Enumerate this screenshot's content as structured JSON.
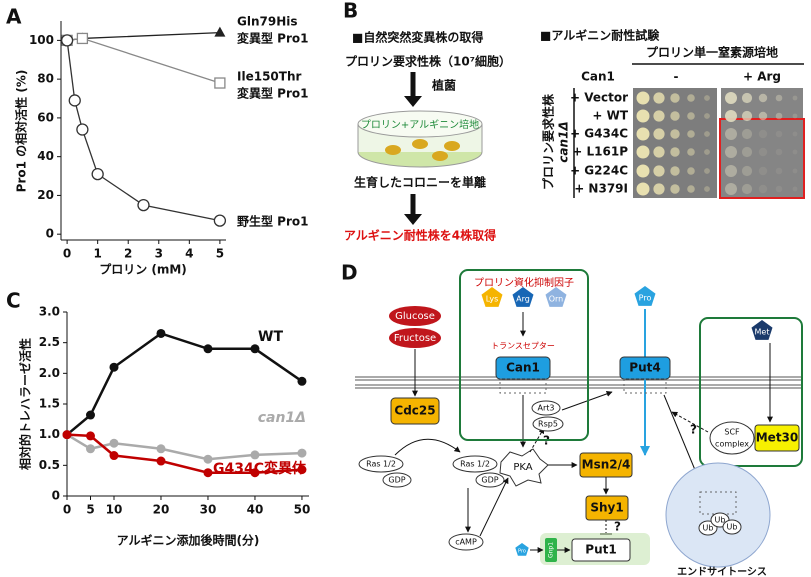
{
  "panel_labels": [
    "A",
    "B",
    "C",
    "D"
  ],
  "chart_data": [
    {
      "type": "line",
      "xlabel": "プロリン (mM)",
      "ylabel": "Pro1 の相対活性 (%)",
      "xlim": [
        -0.2,
        5.2
      ],
      "ylim": [
        -3,
        110
      ],
      "xticks": [
        0,
        1,
        2,
        3,
        4,
        5
      ],
      "yticks": [
        0,
        20,
        40,
        60,
        80,
        100
      ],
      "series": [
        {
          "name": [
            "Gln79His",
            "変異型 Pro1"
          ],
          "color": "#222222",
          "marker": "triangle",
          "x": [
            0,
            0.5,
            5
          ],
          "values": [
            100,
            101,
            104
          ]
        },
        {
          "name": [
            "Ile150Thr",
            "変異型 Pro1"
          ],
          "color": "#888888",
          "marker": "square",
          "x": [
            0,
            0.5,
            5
          ],
          "values": [
            100,
            101,
            78
          ]
        },
        {
          "name": [
            "野生型 Pro1"
          ],
          "color": "#333333",
          "marker": "circle",
          "x": [
            0,
            0.25,
            0.5,
            1,
            2.5,
            5
          ],
          "values": [
            100,
            69,
            54,
            31,
            15,
            7
          ]
        }
      ]
    },
    {
      "type": "line",
      "xlabel": "アルギニン添加後時間(分)",
      "ylabel": "相対的トレハラーゼ活性",
      "xlim": [
        0,
        51.5
      ],
      "ylim": [
        0,
        3.0
      ],
      "xticks": [
        0,
        5,
        10,
        20,
        30,
        40,
        50
      ],
      "yticks": [
        0,
        0.5,
        {
          "value": 1,
          "label": "1.0"
        },
        1.5,
        {
          "value": 2,
          "label": "2.0"
        },
        2.5,
        {
          "value": 3,
          "label": "3.0"
        }
      ],
      "series": [
        {
          "name": [
            "WT"
          ],
          "color": "#111111",
          "marker": "dot",
          "x": [
            0,
            5,
            10,
            20,
            30,
            40,
            50
          ],
          "values": [
            1.0,
            1.32,
            2.1,
            2.65,
            2.4,
            2.4,
            1.87
          ]
        },
        {
          "name": [
            "can1Δ"
          ],
          "color": "#aaaaaa",
          "marker": "dot",
          "x": [
            0,
            5,
            10,
            20,
            30,
            40,
            50
          ],
          "values": [
            1.0,
            0.77,
            0.86,
            0.77,
            0.6,
            0.67,
            0.7
          ]
        },
        {
          "name": [
            "G434C変異体"
          ],
          "color": "#c00000",
          "marker": "dot",
          "x": [
            0,
            5,
            10,
            20,
            30,
            40,
            50
          ],
          "values": [
            1.0,
            0.98,
            0.66,
            0.57,
            0.38,
            0.38,
            0.43
          ]
        }
      ]
    }
  ],
  "panel_b": {
    "isolation_title": "■自然突然変異株の取得",
    "start_strain": "プロリン要求性株（10⁷細胞）",
    "inoculate": "植菌",
    "medium": "プロリン+アルギニン培地",
    "isolate": "生育したコロニーを単離",
    "result": "アルギニン耐性株を4株取得",
    "test_title": "■アルギニン耐性試験",
    "plate_medium": "プロリン単一窒素源培地",
    "can1_header": "Can1",
    "minus_header": "-",
    "arg_header": "+ Arg",
    "strain_label": "プロリン要求性株",
    "strain_genotype": "can1Δ",
    "rows": [
      "+ Vector",
      "+ WT",
      "+ G434C",
      "+ L161P",
      "+ G224C",
      "+ N379I"
    ]
  },
  "panel_d": {
    "carbon_sources": [
      "Glucose",
      "Fructose"
    ],
    "cdc25": "Cdc25",
    "ras_left": [
      "Ras 1/2",
      "GDP"
    ],
    "ras_right": [
      "Ras 1/2",
      "GDP"
    ],
    "camp": "cAMP",
    "pka": "PKA",
    "art3": "Art3",
    "rsp5": "Rsp5",
    "inhibitors_title": "プロリン資化抑制因子",
    "inhibitors": [
      "Lys",
      "Arg",
      "Orn"
    ],
    "transceptor": "トランスセプター",
    "can1": "Can1",
    "pro": "Pro",
    "put4": "Put4",
    "met": "Met",
    "scf": [
      "SCF",
      "complex"
    ],
    "met30": "Met30",
    "msn": "Msn2/4",
    "shy1": "Shy1",
    "put1": "Put1",
    "gnp1": "Gnp1",
    "pro_small": "Pro",
    "question": "?",
    "ub": "Ub",
    "endocytosis": "エンドサイトーシス"
  }
}
